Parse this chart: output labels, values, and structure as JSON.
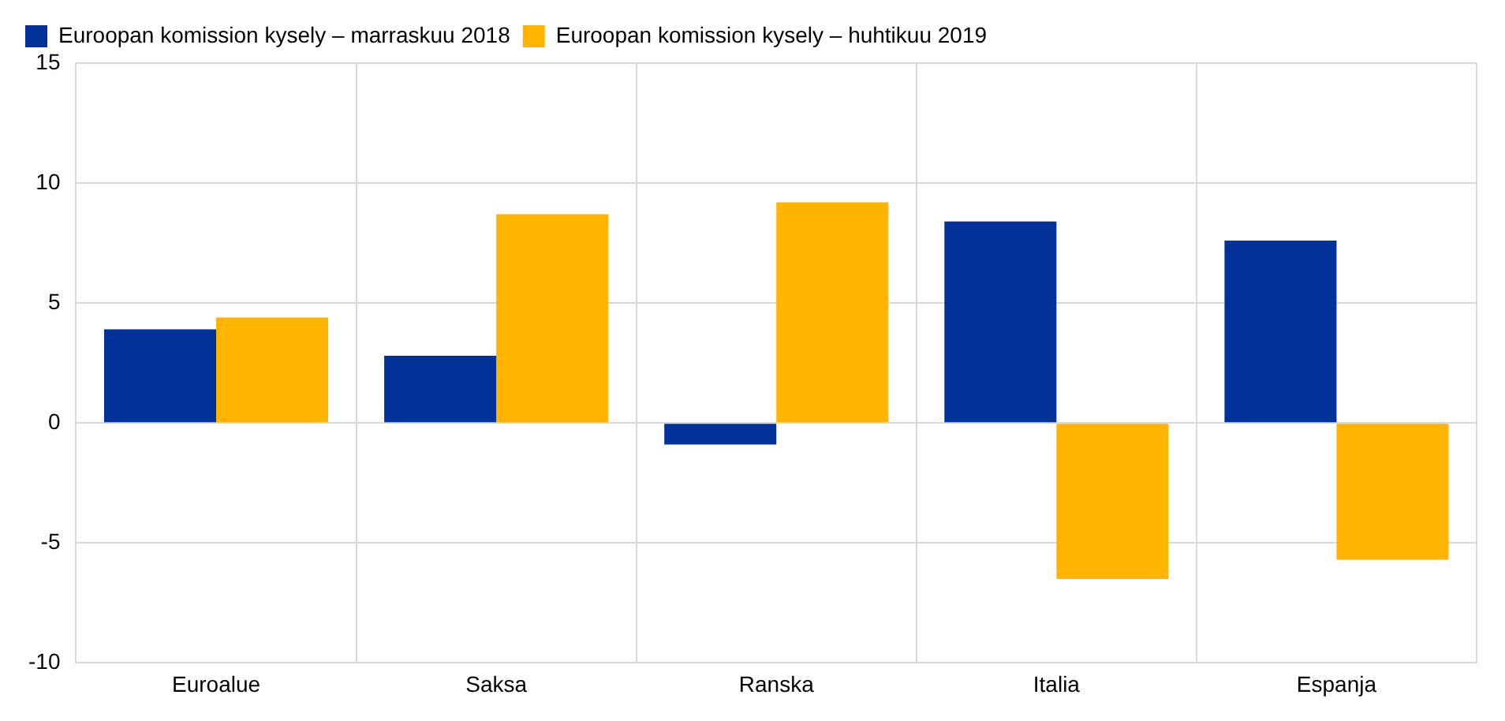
{
  "chart_data": {
    "type": "bar",
    "categories": [
      "Euroalue",
      "Saksa",
      "Ranska",
      "Italia",
      "Espanja"
    ],
    "series": [
      {
        "name": "Euroopan komission kysely – marraskuu 2018",
        "color": "#003299",
        "values": [
          3.9,
          2.8,
          -0.9,
          8.4,
          7.6
        ]
      },
      {
        "name": "Euroopan komission kysely – huhtikuu 2019",
        "color": "#ffb400",
        "values": [
          4.4,
          8.7,
          9.2,
          -6.5,
          -5.7
        ]
      }
    ],
    "ylim": [
      -10,
      15
    ],
    "yticks": [
      -10,
      -5,
      0,
      5,
      10,
      15
    ],
    "grid": true,
    "legend": "top left"
  }
}
